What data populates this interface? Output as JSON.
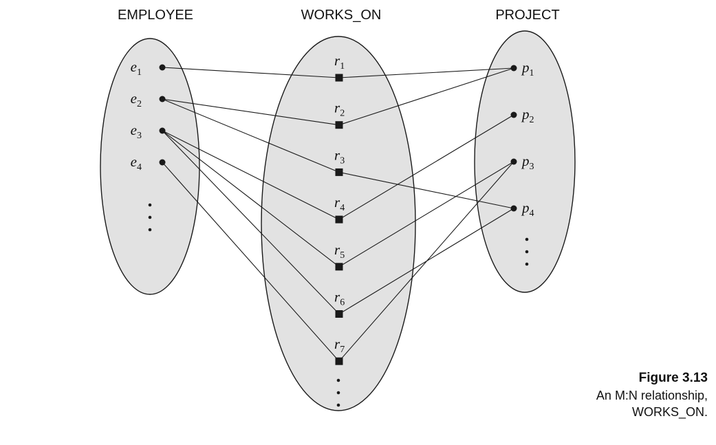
{
  "sets": [
    {
      "id": "employee",
      "title": "EMPLOYEE"
    },
    {
      "id": "works_on",
      "title": "WORKS_ON"
    },
    {
      "id": "project",
      "title": "PROJECT"
    }
  ],
  "entities": {
    "employee": [
      {
        "id": "e1",
        "letter": "e",
        "sub": "1"
      },
      {
        "id": "e2",
        "letter": "e",
        "sub": "2"
      },
      {
        "id": "e3",
        "letter": "e",
        "sub": "3"
      },
      {
        "id": "e4",
        "letter": "e",
        "sub": "4"
      }
    ],
    "works_on": [
      {
        "id": "r1",
        "letter": "r",
        "sub": "1"
      },
      {
        "id": "r2",
        "letter": "r",
        "sub": "2"
      },
      {
        "id": "r3",
        "letter": "r",
        "sub": "3"
      },
      {
        "id": "r4",
        "letter": "r",
        "sub": "4"
      },
      {
        "id": "r5",
        "letter": "r",
        "sub": "5"
      },
      {
        "id": "r6",
        "letter": "r",
        "sub": "6"
      },
      {
        "id": "r7",
        "letter": "r",
        "sub": "7"
      }
    ],
    "project": [
      {
        "id": "p1",
        "letter": "p",
        "sub": "1"
      },
      {
        "id": "p2",
        "letter": "p",
        "sub": "2"
      },
      {
        "id": "p3",
        "letter": "p",
        "sub": "3"
      },
      {
        "id": "p4",
        "letter": "p",
        "sub": "4"
      }
    ]
  },
  "relationships": [
    {
      "id": "r1",
      "employee": "e1",
      "project": "p1"
    },
    {
      "id": "r2",
      "employee": "e2",
      "project": "p1"
    },
    {
      "id": "r3",
      "employee": "e2",
      "project": "p4"
    },
    {
      "id": "r4",
      "employee": "e3",
      "project": "p2"
    },
    {
      "id": "r5",
      "employee": "e3",
      "project": "p3"
    },
    {
      "id": "r6",
      "employee": "e3",
      "project": "p4"
    },
    {
      "id": "r7",
      "employee": "e4",
      "project": "p3"
    }
  ],
  "caption": {
    "title": "Figure 3.13",
    "text": "An M:N relationship, WORKS_ON."
  },
  "colors": {
    "set_fill": "#e2e2e2",
    "stroke": "#1a1a1a"
  }
}
